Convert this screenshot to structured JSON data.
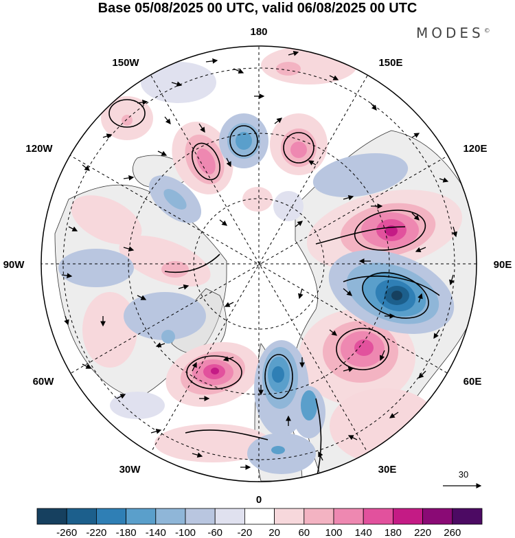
{
  "title": "Base 05/08/2025 00 UTC, valid 06/08/2025 00 UTC",
  "logo": {
    "text": "MODES",
    "mark": "©"
  },
  "map": {
    "projection": "north-polar-stereographic",
    "longitude_labels": {
      "top": "180",
      "bottom": "0",
      "left": "90W",
      "right": "90E",
      "upper_left": "150W",
      "upper_right": "150E",
      "mid_upper_left": "120W",
      "mid_upper_right": "120E",
      "mid_lower_left": "60W",
      "mid_lower_right": "60E",
      "lower_left": "30W",
      "lower_right": "30E"
    },
    "vector_reference": {
      "value": "30",
      "icon": "arrow-right-icon"
    }
  },
  "colorbar": {
    "ticks": [
      "-260",
      "-220",
      "-180",
      "-140",
      "-100",
      "-60",
      "-20",
      "20",
      "60",
      "100",
      "140",
      "180",
      "220",
      "260"
    ],
    "colors": [
      "#16405f",
      "#1c5f8c",
      "#2f7fb5",
      "#5a9fcb",
      "#8fb6d8",
      "#b9c6e0",
      "#e0e1ef",
      "#ffffff",
      "#f7d8dc",
      "#f3b3c2",
      "#ee88b1",
      "#e2519d",
      "#c41b85",
      "#8a0a75",
      "#4c0a63"
    ]
  },
  "chart_data": {
    "type": "polar-map",
    "field": "anomaly field with wind vectors",
    "color_levels": [
      -260,
      -220,
      -180,
      -140,
      -100,
      -60,
      -20,
      20,
      60,
      100,
      140,
      180,
      220,
      260
    ],
    "notable_features": [
      {
        "kind": "positive-max",
        "near": "100E-110E"
      },
      {
        "kind": "negative-min",
        "near": "90E-80E"
      },
      {
        "kind": "positive-max",
        "near": "60W"
      },
      {
        "kind": "negative-min",
        "near": "0-15E"
      }
    ]
  }
}
